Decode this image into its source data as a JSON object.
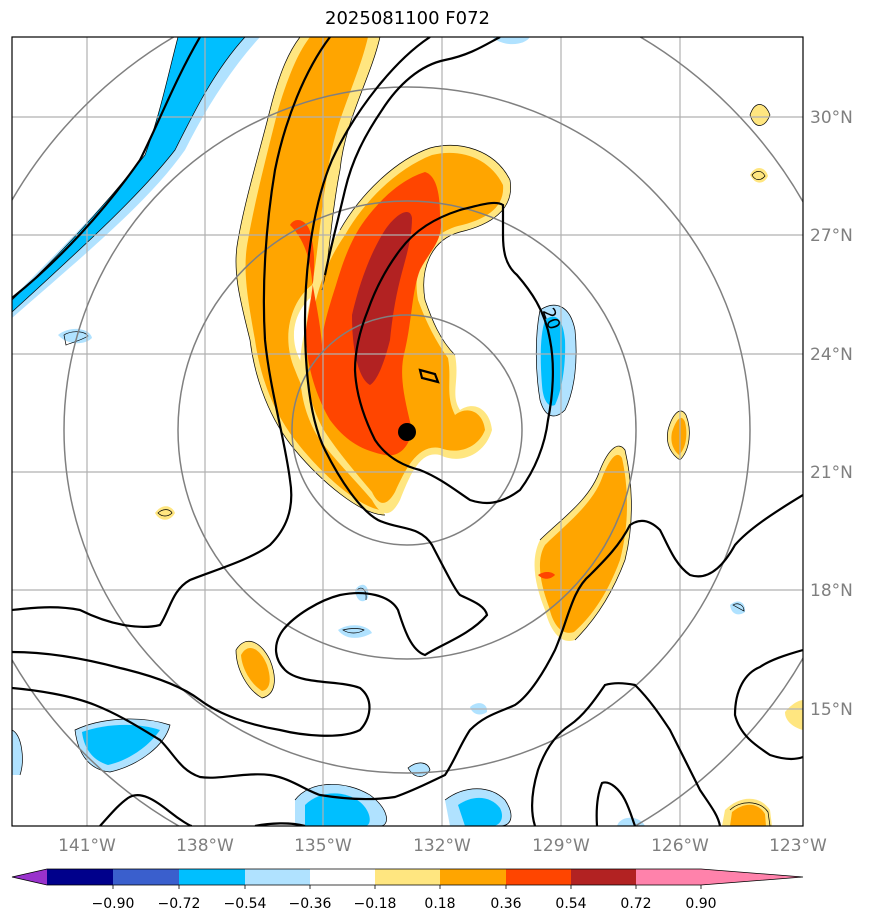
{
  "title": "2025081100 F072",
  "lon_ticks": [
    "141°W",
    "138°W",
    "135°W",
    "132°W",
    "129°W",
    "126°W",
    "123°W"
  ],
  "lat_ticks": [
    "30°N",
    "27°N",
    "24°N",
    "21°N",
    "18°N",
    "15°N"
  ],
  "contour_label": "20",
  "colorbar": {
    "colors": [
      "#9932cc",
      "#00008b",
      "#3a5fcd",
      "#00bfff",
      "#b0e2ff",
      "#ffffff",
      "#ffe680",
      "#ffa500",
      "#ff4500",
      "#b22222",
      "#ff82ab"
    ],
    "tick_labels": [
      "−0.90",
      "−0.72",
      "−0.54",
      "−0.36",
      "−0.18",
      "0.18",
      "0.36",
      "0.54",
      "0.72",
      "0.90"
    ]
  },
  "center_marker": {
    "lon": -132.9,
    "lat": 22.1
  },
  "range_rings": 4
}
